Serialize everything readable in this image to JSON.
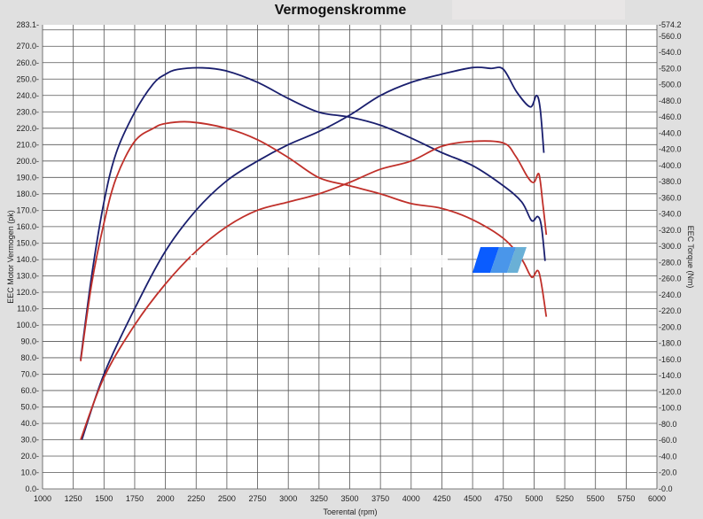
{
  "chart_data": {
    "type": "line",
    "title": "Vermogenskromme",
    "xlabel": "Toerental (rpm)",
    "ylabel": "EEC Motor Vermogen (pk)",
    "y2label": "EEC Torque (Nm)",
    "xlim": [
      1000,
      6000
    ],
    "ylim": [
      0,
      283.1
    ],
    "y2lim": [
      0,
      574.2
    ],
    "xticks": [
      "1000",
      "1250",
      "1500",
      "1750",
      "2000",
      "2250",
      "2500",
      "2750",
      "3000",
      "3250",
      "3500",
      "3750",
      "4000",
      "4250",
      "4500",
      "4750",
      "5000",
      "5250",
      "5500",
      "5750",
      "6000"
    ],
    "ytick_top": "283.1",
    "y2tick_top": "574.2",
    "grid": true,
    "colors": {
      "blue": "#1a1f6e",
      "red": "#c0302a",
      "background": "#e0e0e0",
      "plot": "#ffffff"
    },
    "series": [
      {
        "axis": "left",
        "color": "#1a1f6e",
        "points": [
          [
            1320,
            30
          ],
          [
            1500,
            70
          ],
          [
            1750,
            110
          ],
          [
            2000,
            145
          ],
          [
            2250,
            170
          ],
          [
            2500,
            188
          ],
          [
            2750,
            200
          ],
          [
            3000,
            210
          ],
          [
            3250,
            218
          ],
          [
            3500,
            228
          ],
          [
            3750,
            240
          ],
          [
            4000,
            248
          ],
          [
            4250,
            253
          ],
          [
            4500,
            257
          ],
          [
            4650,
            256.5
          ],
          [
            4750,
            256
          ],
          [
            4860,
            242
          ],
          [
            4970,
            233
          ],
          [
            5020,
            240
          ],
          [
            5050,
            232
          ],
          [
            5080,
            205
          ]
        ]
      },
      {
        "axis": "right",
        "color": "#1a1f6e",
        "points": [
          [
            1310,
            160
          ],
          [
            1400,
            264
          ],
          [
            1500,
            355
          ],
          [
            1600,
            416
          ],
          [
            1750,
            466
          ],
          [
            1900,
            501
          ],
          [
            2000,
            513
          ],
          [
            2100,
            519
          ],
          [
            2300,
            521
          ],
          [
            2500,
            517
          ],
          [
            2750,
            503
          ],
          [
            3000,
            483
          ],
          [
            3250,
            466
          ],
          [
            3500,
            460
          ],
          [
            3750,
            450
          ],
          [
            4000,
            434
          ],
          [
            4250,
            416
          ],
          [
            4500,
            400
          ],
          [
            4750,
            375
          ],
          [
            4900,
            355
          ],
          [
            4980,
            332
          ],
          [
            5030,
            337
          ],
          [
            5060,
            325
          ],
          [
            5090,
            282
          ]
        ]
      },
      {
        "axis": "left",
        "color": "#c0302a",
        "points": [
          [
            1310,
            30
          ],
          [
            1500,
            68
          ],
          [
            1750,
            100
          ],
          [
            2000,
            125
          ],
          [
            2250,
            145
          ],
          [
            2500,
            160
          ],
          [
            2750,
            170
          ],
          [
            3000,
            175
          ],
          [
            3250,
            180
          ],
          [
            3500,
            187
          ],
          [
            3750,
            195
          ],
          [
            4000,
            200
          ],
          [
            4250,
            209
          ],
          [
            4500,
            212
          ],
          [
            4750,
            211
          ],
          [
            4850,
            203
          ],
          [
            4950,
            190
          ],
          [
            5000,
            187
          ],
          [
            5040,
            192
          ],
          [
            5070,
            175
          ],
          [
            5100,
            155
          ]
        ]
      },
      {
        "axis": "right",
        "color": "#c0302a",
        "points": [
          [
            1310,
            158
          ],
          [
            1400,
            254
          ],
          [
            1500,
            329
          ],
          [
            1600,
            385
          ],
          [
            1750,
            430
          ],
          [
            1900,
            446
          ],
          [
            2000,
            452
          ],
          [
            2200,
            454
          ],
          [
            2500,
            446
          ],
          [
            2750,
            432
          ],
          [
            3000,
            410
          ],
          [
            3250,
            385
          ],
          [
            3500,
            375
          ],
          [
            3750,
            365
          ],
          [
            4000,
            353
          ],
          [
            4250,
            347
          ],
          [
            4500,
            333
          ],
          [
            4750,
            310
          ],
          [
            4900,
            284
          ],
          [
            4980,
            262
          ],
          [
            5040,
            268
          ],
          [
            5100,
            213
          ]
        ]
      }
    ]
  }
}
